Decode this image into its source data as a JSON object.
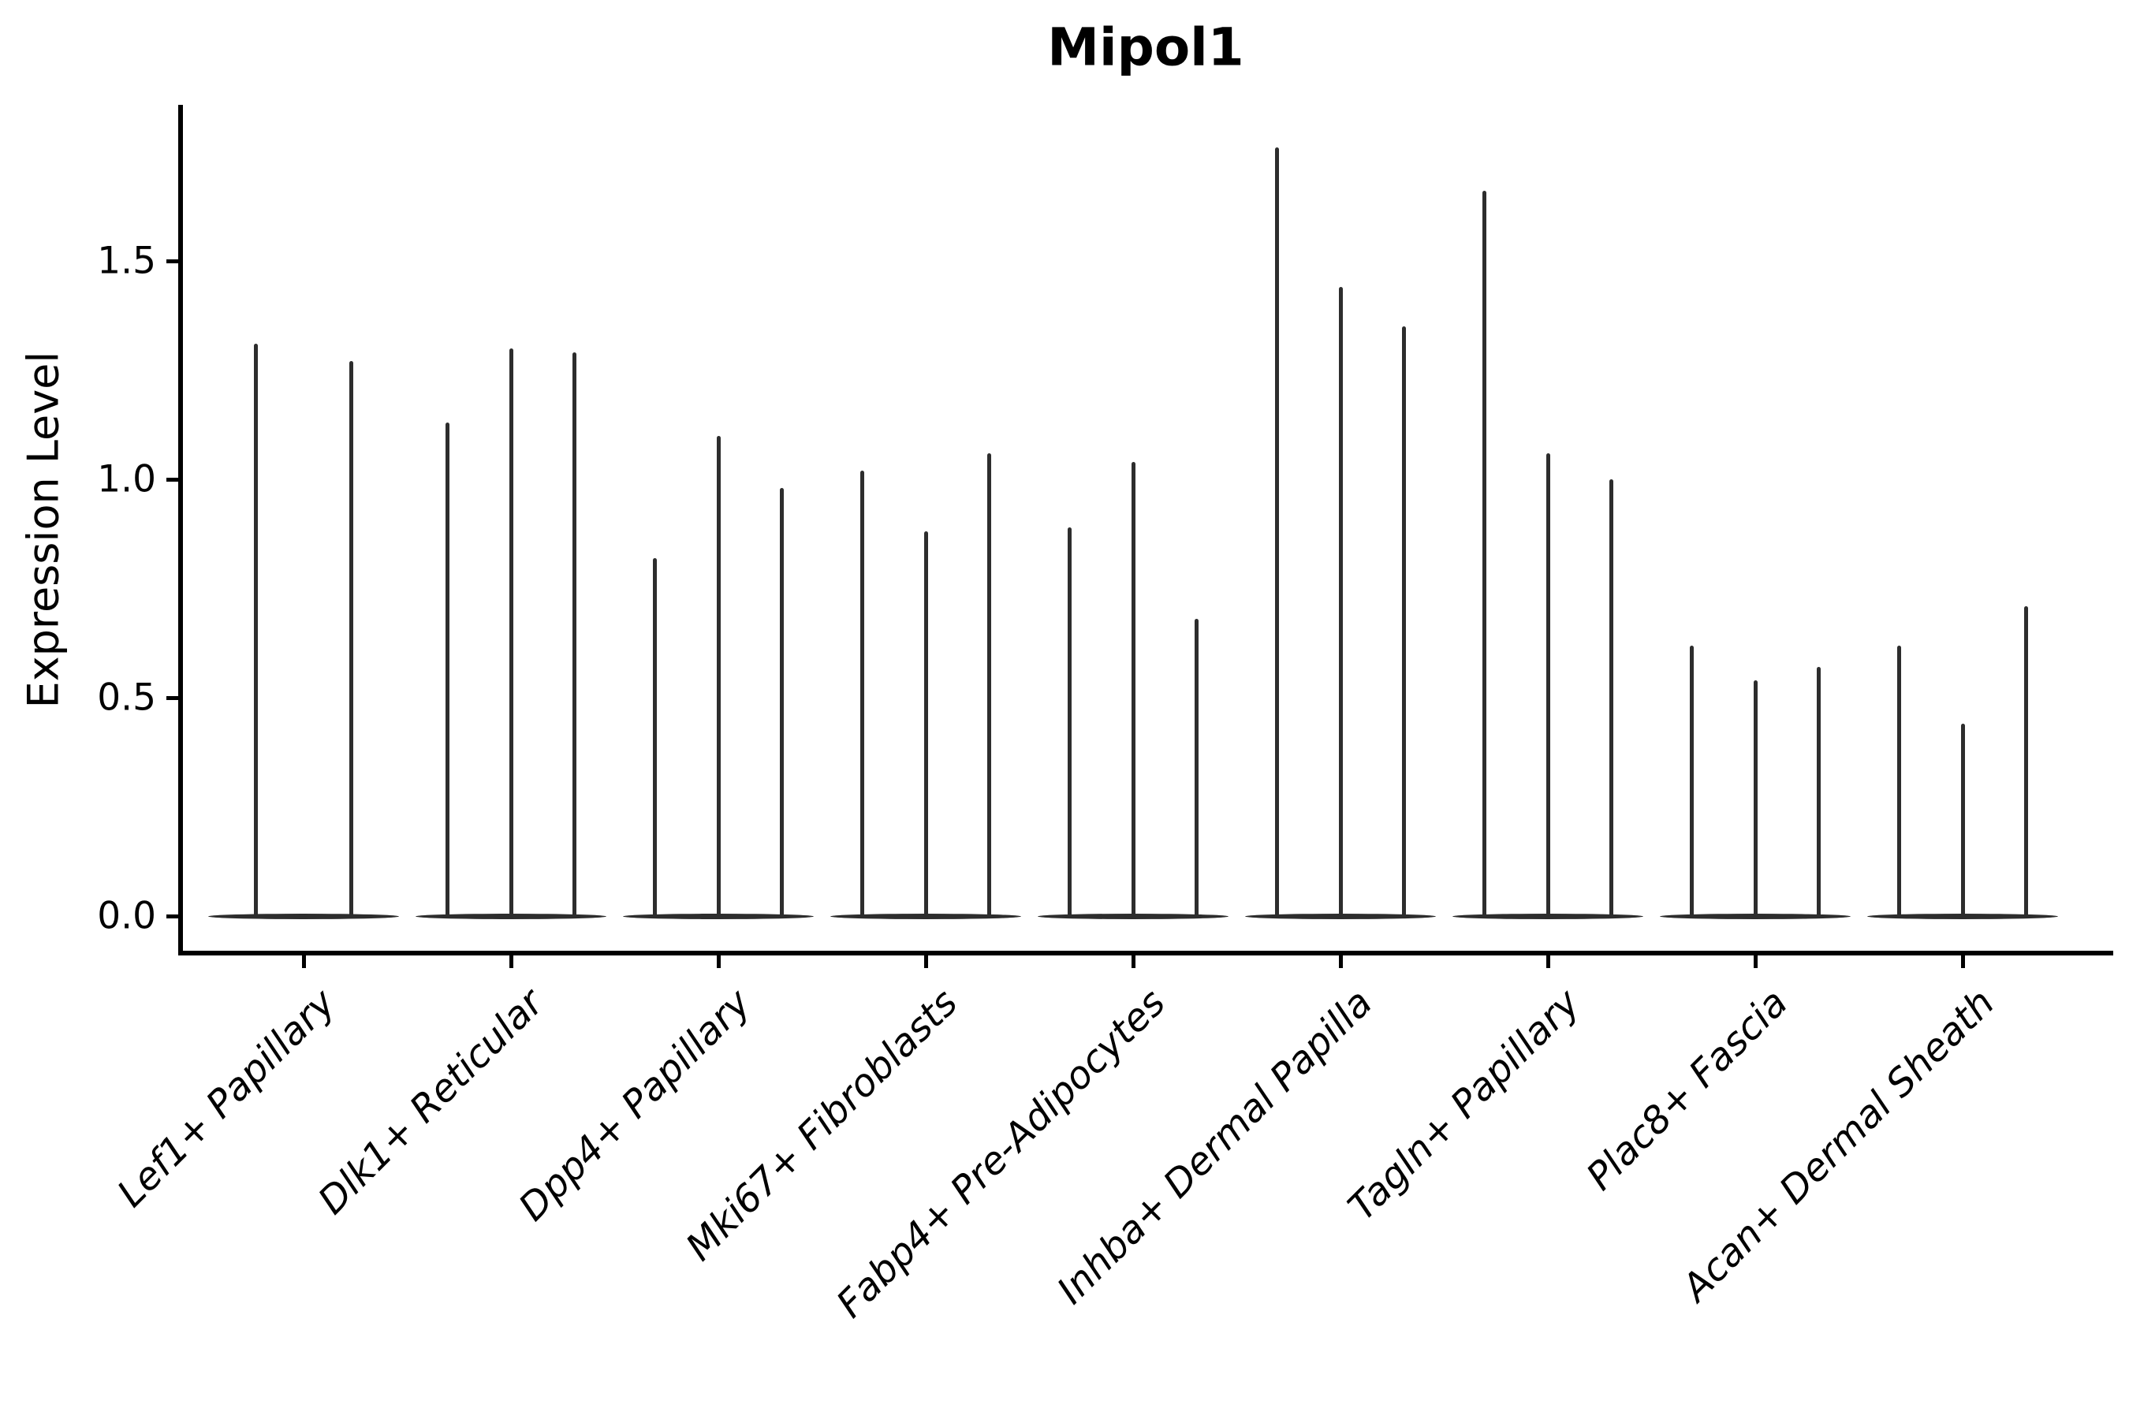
{
  "chart_data": {
    "type": "violin",
    "title": "Mipol1",
    "ylabel": "Expression Level",
    "xlabel": "",
    "ylim": [
      -0.08,
      1.86
    ],
    "grid": false,
    "legend": false,
    "violin_color": "#2d2d2d",
    "axis_color": "#000000",
    "text_color": "#000000",
    "x_label_style": "italic, rotated 45deg",
    "yticks": [
      {
        "label": "0.0",
        "value": 0.0
      },
      {
        "label": "0.5",
        "value": 0.5
      },
      {
        "label": "1.0",
        "value": 1.0
      },
      {
        "label": "1.5",
        "value": 1.5
      }
    ],
    "categories": [
      "Lef1+ Papillary",
      "Dlk1+ Reticular",
      "Dpp4+ Papillary",
      "Mki67+ Fibroblasts",
      "Fabp4+ Pre-Adipocytes",
      "Inhba+ Dermal Papilla",
      "Tagln+ Papillary",
      "Plac8+ Fascia",
      "Acan+ Dermal Sheath"
    ],
    "groups": [
      {
        "category": "Lef1+ Papillary",
        "violin_maxima": [
          1.31,
          1.27
        ]
      },
      {
        "category": "Dlk1+ Reticular",
        "violin_maxima": [
          1.13,
          1.3,
          1.29
        ]
      },
      {
        "category": "Dpp4+ Papillary",
        "violin_maxima": [
          0.82,
          1.1,
          0.98
        ]
      },
      {
        "category": "Mki67+ Fibroblasts",
        "violin_maxima": [
          1.02,
          0.88,
          1.06
        ]
      },
      {
        "category": "Fabp4+ Pre-Adipocytes",
        "violin_maxima": [
          0.89,
          1.04,
          0.68
        ]
      },
      {
        "category": "Inhba+ Dermal Papilla",
        "violin_maxima": [
          1.76,
          1.44,
          1.35
        ]
      },
      {
        "category": "Tagln+ Papillary",
        "violin_maxima": [
          1.66,
          1.06,
          1.0
        ]
      },
      {
        "category": "Plac8+ Fascia",
        "violin_maxima": [
          0.62,
          0.54,
          0.57
        ]
      },
      {
        "category": "Acan+ Dermal Sheath",
        "violin_maxima": [
          0.62,
          0.44,
          0.71
        ]
      }
    ],
    "baseline_value": 0.0
  }
}
